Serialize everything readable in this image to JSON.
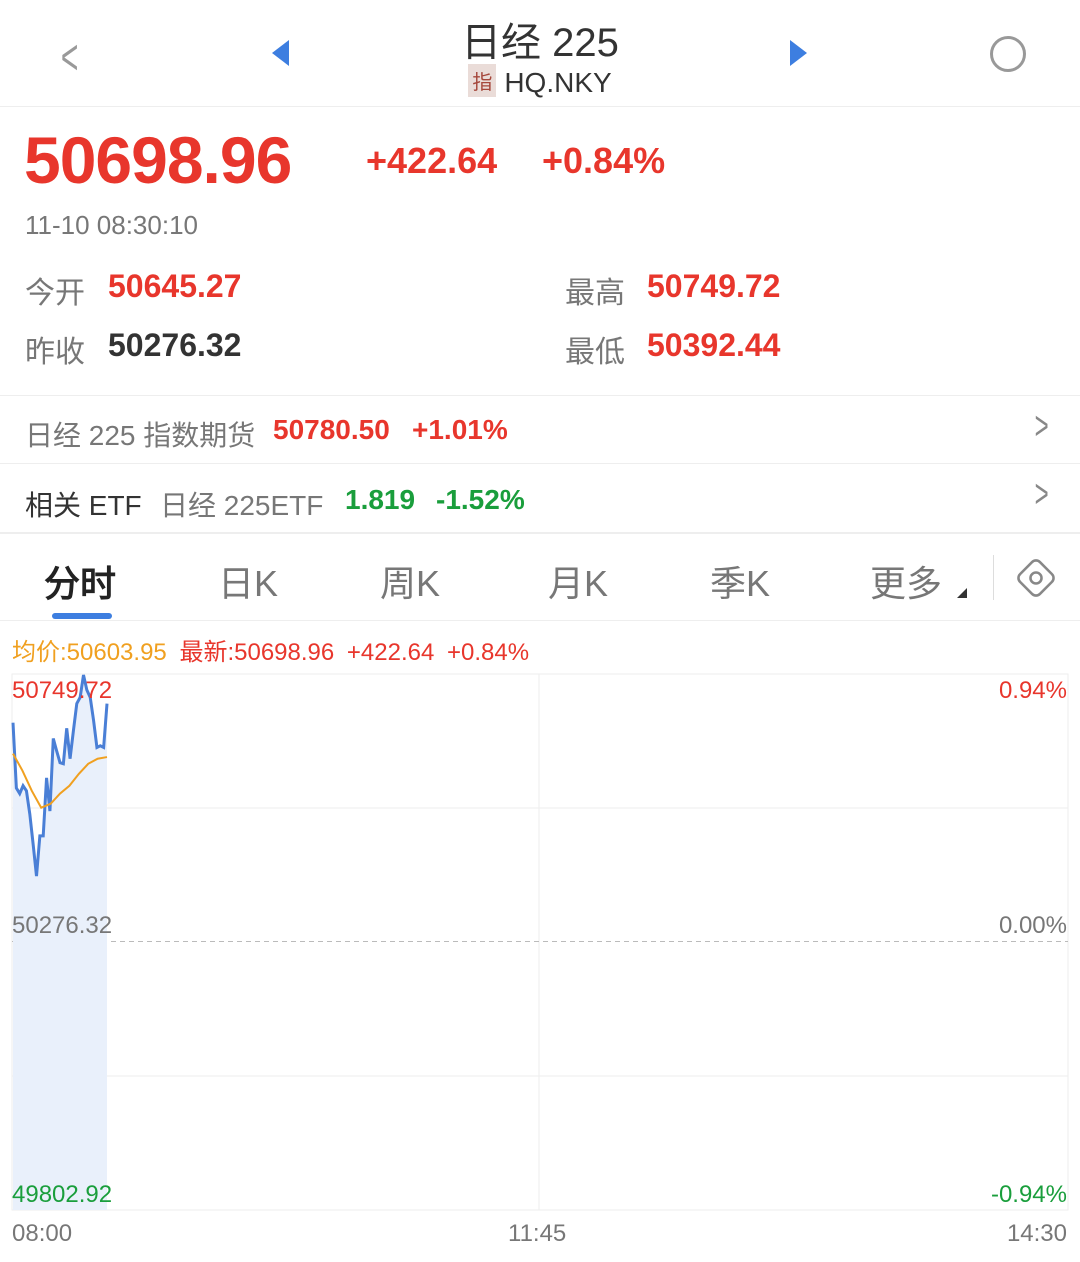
{
  "header": {
    "title": "日经 225",
    "badge": "指",
    "code": "HQ.NKY"
  },
  "quote": {
    "price": "50698.96",
    "change": "+422.64",
    "change_pct": "+0.84%",
    "time": "11-10 08:30:10",
    "open_label": "今开",
    "open": "50645.27",
    "high_label": "最高",
    "high": "50749.72",
    "prev_label": "昨收",
    "prev": "50276.32",
    "low_label": "最低",
    "low": "50392.44"
  },
  "futures": {
    "name": "日经 225 指数期货",
    "price": "50780.50",
    "pct": "+1.01%"
  },
  "etf": {
    "label": "相关 ETF",
    "name": "日经 225ETF",
    "price": "1.819",
    "pct": "-1.52%"
  },
  "tabs": [
    "分时",
    "日K",
    "周K",
    "月K",
    "季K",
    "更多"
  ],
  "chart_info": {
    "avg": "均价:50603.95",
    "latest": "最新:50698.96",
    "change": "+422.64",
    "pct": "+0.84%"
  },
  "chart_data": {
    "type": "line",
    "y_labels": {
      "top": "50749.72",
      "mid": "50276.32",
      "bottom": "49802.92"
    },
    "pct_labels": {
      "top": "0.94%",
      "mid": "0.00%",
      "bottom": "-0.94%"
    },
    "x_labels": [
      "08:00",
      "11:45",
      "14:30"
    ],
    "ylim": [
      49802.92,
      50749.72
    ],
    "baseline": 50276.32,
    "price": [
      50665,
      50549,
      50539,
      50553,
      50544,
      50503,
      50449,
      50392.44,
      50464,
      50464,
      50567,
      50508,
      50637,
      50615,
      50594,
      50592,
      50655,
      50601,
      50651,
      50699,
      50710,
      50749.72,
      50723,
      50710,
      50669,
      50621,
      50624,
      50621,
      50698.96
    ],
    "avg": [
      50610,
      50580,
      50544,
      50514,
      50521,
      50539,
      50553,
      50574,
      50592,
      50601,
      50603.95
    ],
    "colors": {
      "price": "#4a7fd6",
      "avg": "#f0a020",
      "up": "#e8362c",
      "down": "#1a9e3c"
    }
  }
}
